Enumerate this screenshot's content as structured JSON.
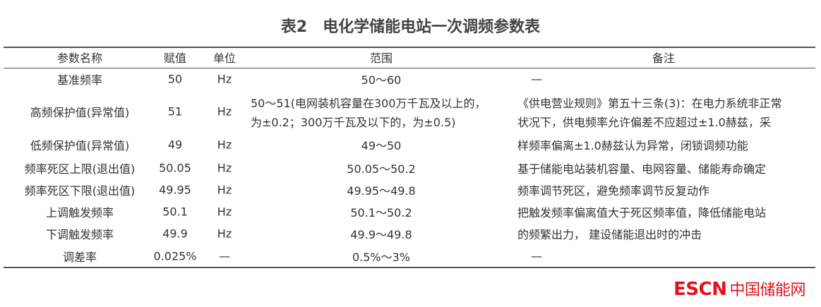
{
  "title": "表2　电化学储能电站一次调频参数表",
  "headers": [
    "参数名称",
    "赋值",
    "单位",
    "范围",
    "备注"
  ],
  "rows": [
    {
      "name": "基准频率",
      "value": "50",
      "unit": "Hz",
      "range": "50～60"
    },
    {
      "name": "高频保护值(异常值)",
      "value": "51",
      "unit": "Hz",
      "range_lines": [
        "50～51(电网装机容量在300万千瓦及以上的，",
        "为±0.2；300万千瓦及以下的，为±0.5)"
      ]
    },
    {
      "name": "低频保护值(异常值)",
      "value": "49",
      "unit": "Hz",
      "range": "49～50"
    },
    {
      "name": "频率死区上限(退出值)",
      "value": "50.05",
      "unit": "Hz",
      "range": "50.05～50.2"
    },
    {
      "name": "频率死区下限(退出值)",
      "value": "49.95",
      "unit": "Hz",
      "range": "49.95～49.8"
    },
    {
      "name": "上调触发频率",
      "value": "50.1",
      "unit": "Hz",
      "range": "50.1～50.2"
    },
    {
      "name": "下调触发频率",
      "value": "49.9",
      "unit": "Hz",
      "range": "49.9～49.8"
    },
    {
      "name": "调差率",
      "value": "0.025%",
      "unit": "—",
      "range": "0.5%～3%"
    }
  ],
  "remarks": [
    "—",
    "《供电营业规则》第五十三条(3)：在电力系统非正常",
    "状况下，供电频率允许偏差不应超过±1.0赫兹，采",
    "样频率偏离±1.0赫兹认为异常，闭锁调频功能",
    "基于储能电站装机容量、电网容量、储能寿命确定",
    "频率调节死区，避免频率调节反复动作",
    "把触发频率偏离值大于死区频率值，降低储能电站",
    "的频繁出力， 建设储能退出时的冲击",
    "—"
  ],
  "logo": {
    "latin": "ESCN",
    "cn": "中国储能网"
  }
}
